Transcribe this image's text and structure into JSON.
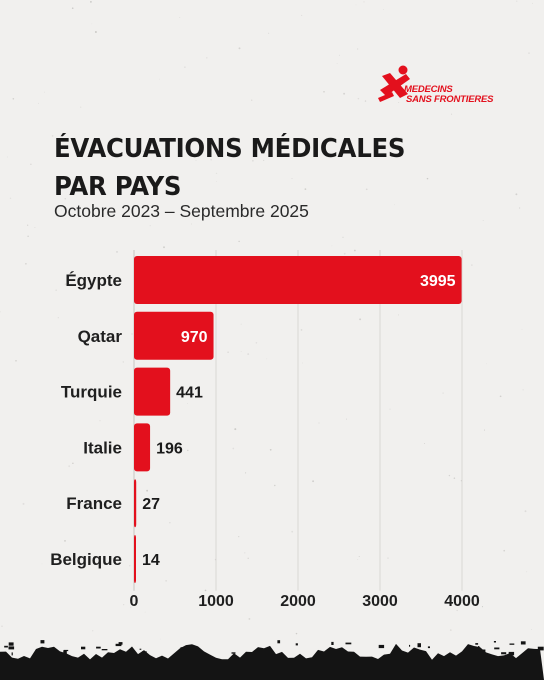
{
  "logo": {
    "line1": "MEDECINS",
    "line2": "SANS FRONTIERES",
    "icon": "msf-running-figure-icon"
  },
  "header": {
    "title_line1": "ÉVACUATIONS MÉDICALES",
    "title_line2": "PAR PAYS",
    "subtitle": "Octobre 2023 – Septembre 2025"
  },
  "colors": {
    "background": "#f1f0ee",
    "bar": "#e3101d",
    "text": "#1a1a1a",
    "grid": "#d9d7d4",
    "value_inside": "#ffffff"
  },
  "chart_data": {
    "type": "bar",
    "orientation": "horizontal",
    "categories": [
      "Égypte",
      "Qatar",
      "Turquie",
      "Italie",
      "France",
      "Belgique"
    ],
    "values": [
      3995,
      970,
      441,
      196,
      27,
      14
    ],
    "value_labels": [
      "3995",
      "970",
      "441",
      "196",
      "27",
      "14"
    ],
    "xlim": [
      0,
      4000
    ],
    "xticks": [
      0,
      1000,
      2000,
      3000,
      4000
    ],
    "xtick_labels": [
      "0",
      "1000",
      "2000",
      "3000",
      "4000"
    ],
    "grid": true,
    "legend": "none"
  }
}
